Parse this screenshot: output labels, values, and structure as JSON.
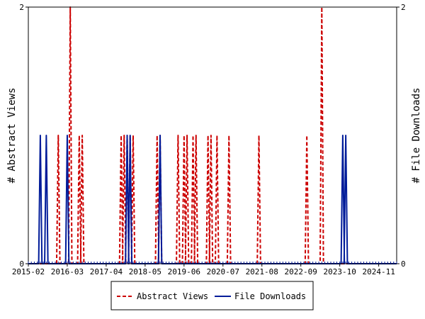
{
  "chart_data": {
    "type": "line",
    "title": "",
    "ylabel_left": "# Abstract Views",
    "ylabel_right": "# File Downloads",
    "x_tick_labels": [
      "2015-02",
      "2016-03",
      "2017-04",
      "2018-05",
      "2019-06",
      "2020-07",
      "2021-08",
      "2022-09",
      "2023-10",
      "2024-11"
    ],
    "x_range": [
      "2015-02",
      "2025-05"
    ],
    "ylim_left": [
      0,
      2
    ],
    "ylim_right": [
      0,
      2
    ],
    "y_ticks_left": [
      "0",
      "2"
    ],
    "y_ticks_right": [
      "0",
      "2"
    ],
    "grid": false,
    "legend_position": "bottom-center",
    "series": [
      {
        "name": "Abstract Views",
        "axis": "left",
        "color": "#cc0000",
        "style": "dashed",
        "points": [
          [
            "2015-12",
            1
          ],
          [
            "2016-04",
            2
          ],
          [
            "2016-07",
            1
          ],
          [
            "2016-08",
            1
          ],
          [
            "2017-09",
            1
          ],
          [
            "2017-10",
            1
          ],
          [
            "2017-11",
            1
          ],
          [
            "2017-12",
            1
          ],
          [
            "2018-01",
            1
          ],
          [
            "2018-09",
            1
          ],
          [
            "2018-10",
            1
          ],
          [
            "2019-04",
            1
          ],
          [
            "2019-06",
            1
          ],
          [
            "2019-07",
            1
          ],
          [
            "2019-09",
            1
          ],
          [
            "2019-10",
            1
          ],
          [
            "2020-02",
            1
          ],
          [
            "2020-03",
            1
          ],
          [
            "2020-05",
            1
          ],
          [
            "2020-09",
            1
          ],
          [
            "2021-07",
            1
          ],
          [
            "2022-11",
            1
          ],
          [
            "2023-04",
            2
          ]
        ]
      },
      {
        "name": "File Downloads",
        "axis": "right",
        "color": "#001b99",
        "style": "solid",
        "points": [
          [
            "2015-06",
            1
          ],
          [
            "2015-08",
            1
          ],
          [
            "2016-03",
            1
          ],
          [
            "2017-11",
            1
          ],
          [
            "2017-12",
            1
          ],
          [
            "2018-10",
            1
          ],
          [
            "2023-11",
            1
          ],
          [
            "2023-12",
            1
          ]
        ]
      }
    ]
  }
}
